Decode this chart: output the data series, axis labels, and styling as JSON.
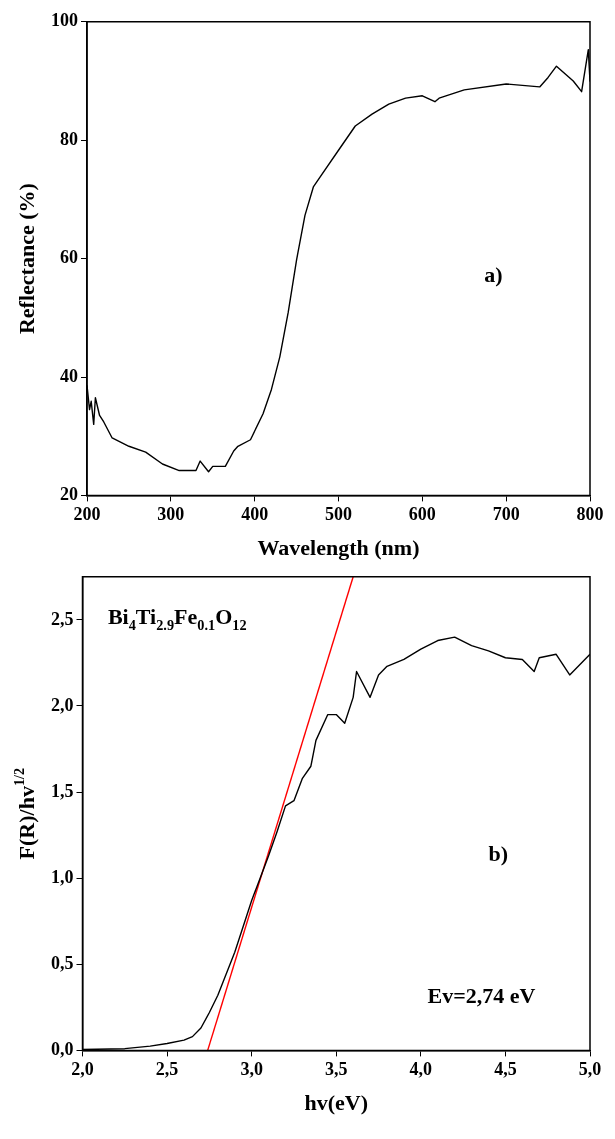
{
  "chart_data": [
    {
      "type": "line",
      "xlabel": "Wavelength (nm)",
      "ylabel": "Reflectance (%)",
      "xlim": [
        200,
        800
      ],
      "ylim": [
        20,
        100
      ],
      "xticks": [
        200,
        300,
        400,
        500,
        600,
        700,
        800
      ],
      "yticks": [
        20,
        40,
        60,
        80,
        100
      ],
      "x": [
        200,
        203,
        205,
        208,
        210,
        215,
        220,
        230,
        250,
        270,
        290,
        310,
        330,
        335,
        345,
        350,
        365,
        375,
        380,
        395,
        410,
        420,
        430,
        440,
        450,
        460,
        470,
        480,
        500,
        520,
        540,
        560,
        580,
        600,
        615,
        620,
        650,
        700,
        740,
        750,
        760,
        780,
        790,
        798,
        800
      ],
      "series": [
        {
          "color": "#000000",
          "values": [
            38.6,
            34.5,
            35.9,
            32.0,
            36.5,
            33.5,
            32.4,
            29.7,
            28.3,
            27.3,
            25.3,
            24.2,
            24.2,
            25.8,
            24.0,
            24.9,
            24.9,
            27.5,
            28.3,
            29.4,
            33.8,
            37.9,
            43.4,
            50.9,
            59.8,
            67.3,
            72.1,
            74.2,
            78.3,
            82.4,
            84.4,
            86.1,
            87.1,
            87.5,
            86.5,
            87.1,
            88.5,
            89.5,
            89.0,
            90.6,
            92.5,
            90.0,
            88.2,
            95.3,
            89.9
          ]
        }
      ],
      "annotations": [
        "a)"
      ]
    },
    {
      "type": "line",
      "xlabel": "hv(eV)",
      "ylabel": "F(R)/hv$^{1/2}$",
      "xlim": [
        2,
        5
      ],
      "ylim": [
        0,
        2.75
      ],
      "xticks": [
        {
          "value": 2,
          "label": "2,0"
        },
        {
          "value": 2.5,
          "label": "2,5"
        },
        {
          "value": 3,
          "label": "3,0"
        },
        {
          "value": 3.5,
          "label": "3,5"
        },
        {
          "value": 4,
          "label": "4,0"
        },
        {
          "value": 4.5,
          "label": "4,5"
        },
        {
          "value": 5,
          "label": "5,0"
        }
      ],
      "yticks": [
        {
          "value": 0,
          "label": "0,0"
        },
        {
          "value": 0.5,
          "label": "0,5"
        },
        {
          "value": 1,
          "label": "1,0"
        },
        {
          "value": 1.5,
          "label": "1,5"
        },
        {
          "value": 2,
          "label": "2,0"
        },
        {
          "value": 2.5,
          "label": "2,5"
        }
      ],
      "x": [
        2.0,
        2.25,
        2.4,
        2.5,
        2.6,
        2.65,
        2.7,
        2.75,
        2.8,
        2.9,
        3.0,
        3.1,
        3.15,
        3.2,
        3.25,
        3.3,
        3.35,
        3.38,
        3.45,
        3.5,
        3.55,
        3.6,
        3.62,
        3.7,
        3.75,
        3.8,
        3.9,
        4.0,
        4.1,
        4.2,
        4.3,
        4.4,
        4.5,
        4.6,
        4.67,
        4.7,
        4.8,
        4.88,
        5.0
      ],
      "series": [
        {
          "color": "#000000",
          "values": [
            0.005,
            0.01,
            0.025,
            0.04,
            0.06,
            0.08,
            0.13,
            0.22,
            0.32,
            0.57,
            0.87,
            1.13,
            1.27,
            1.42,
            1.45,
            1.58,
            1.65,
            1.8,
            1.95,
            1.95,
            1.9,
            2.05,
            2.2,
            2.05,
            2.18,
            2.23,
            2.27,
            2.33,
            2.38,
            2.4,
            2.35,
            2.32,
            2.28,
            2.27,
            2.2,
            2.28,
            2.3,
            2.18,
            2.3
          ]
        },
        {
          "type": "line",
          "x": [
            2.74,
            3.6
          ],
          "values": [
            0,
            2.75
          ],
          "color": "#ff0000"
        }
      ],
      "annotations": [
        "Bi$_{4}$Ti$_{2.9}$Fe$_{0.1}$O$_{12}$",
        "b)",
        "Ev=2,74 eV"
      ]
    }
  ]
}
